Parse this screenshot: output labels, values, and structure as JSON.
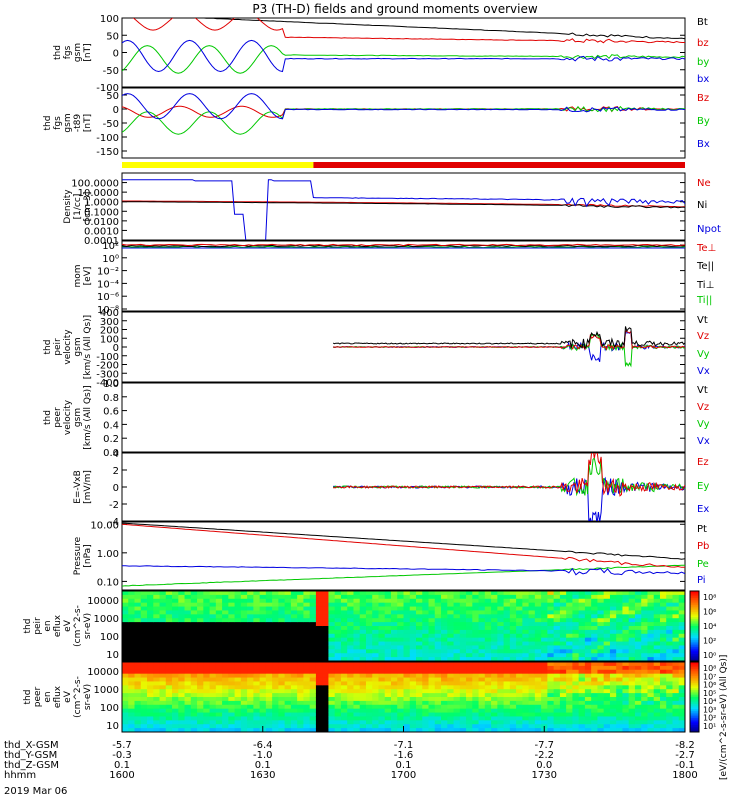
{
  "title": "P3 (TH-D) fields and ground moments overview",
  "date_label": "2019 Mar 06",
  "colors": {
    "black": "#000000",
    "red": "#e00000",
    "green": "#00c800",
    "blue": "#0000e0",
    "yellow": "#ffff00"
  },
  "chart_data": [
    {
      "type": "line",
      "id": "fgs",
      "ylabel_lines": [
        "thd",
        "fgs",
        "gsm",
        "[nT]"
      ],
      "ylim": [
        -100,
        100
      ],
      "yticks": [
        100,
        50,
        0,
        -50,
        -100
      ],
      "series": [
        {
          "name": "Bt",
          "color": "#000000"
        },
        {
          "name": "bz",
          "color": "#e00000"
        },
        {
          "name": "by",
          "color": "#00c800"
        },
        {
          "name": "bx",
          "color": "#0000e0"
        }
      ]
    },
    {
      "type": "line",
      "id": "fgs_t89",
      "ylabel_lines": [
        "thd",
        "fgs",
        "gsm",
        "-t89",
        "[nT]"
      ],
      "ylim": [
        -175,
        75
      ],
      "yticks": [
        50,
        0,
        -50,
        -100,
        -150
      ],
      "series": [
        {
          "name": "Bz",
          "color": "#e00000"
        },
        {
          "name": "By",
          "color": "#00c800"
        },
        {
          "name": "Bx",
          "color": "#0000e0"
        }
      ]
    },
    {
      "type": "line",
      "id": "density",
      "ylabel_lines": [
        "Density",
        "[1/cc]",
        "[cm-3]"
      ],
      "ylog": true,
      "ylim": [
        0.0001,
        1000
      ],
      "yticks": [
        "100.0000",
        "10.0000",
        "1.0000",
        "0.1000",
        "0.0100",
        "0.0010",
        "0.0001"
      ],
      "series": [
        {
          "name": "Ne",
          "color": "#e00000"
        },
        {
          "name": "Ni",
          "color": "#000000"
        },
        {
          "name": "Npot",
          "color": "#0000e0"
        }
      ]
    },
    {
      "type": "line",
      "id": "temperature",
      "ylabel_lines": [
        "mom",
        "[eV]"
      ],
      "ylog": true,
      "yticks": [
        "10²",
        "10⁰",
        "10⁻²",
        "10⁻⁴",
        "10⁻⁶",
        "10⁻⁸"
      ],
      "series": [
        {
          "name": "Te⊥",
          "color": "#e00000"
        },
        {
          "name": "Te||",
          "color": "#000000"
        },
        {
          "name": "Ti⊥",
          "color": "#000000"
        },
        {
          "name": "Ti||",
          "color": "#00c800"
        }
      ]
    },
    {
      "type": "line",
      "id": "peir_velocity",
      "ylabel_lines": [
        "thd",
        "peir",
        "velocity",
        "gsm",
        "[km/s (All Qs)]"
      ],
      "ylim": [
        -400,
        400
      ],
      "yticks": [
        400,
        300,
        200,
        100,
        0,
        -100,
        -200,
        -300,
        -400
      ],
      "series": [
        {
          "name": "Vt",
          "color": "#000000"
        },
        {
          "name": "Vz",
          "color": "#e00000"
        },
        {
          "name": "Vy",
          "color": "#00c800"
        },
        {
          "name": "Vx",
          "color": "#0000e0"
        }
      ]
    },
    {
      "type": "line",
      "id": "peer_velocity",
      "ylabel_lines": [
        "thd",
        "peer",
        "velocity",
        "gsm",
        "[km/s (All Qs)]"
      ],
      "ylim": [
        0,
        1.0
      ],
      "yticks": [
        "1.0",
        "0.8",
        "0.6",
        "0.4",
        "0.2",
        "0.0"
      ],
      "series": [
        {
          "name": "Vt",
          "color": "#000000"
        },
        {
          "name": "Vz",
          "color": "#e00000"
        },
        {
          "name": "Vy",
          "color": "#00c800"
        },
        {
          "name": "Vx",
          "color": "#0000e0"
        }
      ]
    },
    {
      "type": "line",
      "id": "efield",
      "ylabel_lines": [
        "E=-VxB",
        "[mV/m]"
      ],
      "ylim": [
        -4,
        4
      ],
      "yticks": [
        4,
        2,
        0,
        -2,
        -4
      ],
      "series": [
        {
          "name": "Ez",
          "color": "#e00000"
        },
        {
          "name": "Ey",
          "color": "#00c800"
        },
        {
          "name": "Ex",
          "color": "#0000e0"
        }
      ]
    },
    {
      "type": "line",
      "id": "pressure",
      "ylabel_lines": [
        "Pressure",
        "[nPa]"
      ],
      "ylog": true,
      "ylim": [
        0.05,
        12
      ],
      "yticks": [
        "10.00",
        "1.00",
        "0.10"
      ],
      "series": [
        {
          "name": "Pt",
          "color": "#000000"
        },
        {
          "name": "Pb",
          "color": "#e00000"
        },
        {
          "name": "Pe",
          "color": "#00c800"
        },
        {
          "name": "Pi",
          "color": "#0000e0"
        }
      ]
    },
    {
      "type": "heatmap",
      "id": "peir_eflux",
      "ylabel_lines": [
        "thd",
        "peir",
        "en",
        "eflux",
        "eV",
        "(cm^2-s-",
        "sr-eV)"
      ],
      "ylog": true,
      "yticks": [
        "10000",
        "1000",
        "100",
        "10"
      ]
    },
    {
      "type": "heatmap",
      "id": "peer_eflux",
      "ylabel_lines": [
        "thd",
        "peer",
        "en",
        "eflux",
        "eV",
        "(cm^2-s-",
        "sr-eV)"
      ],
      "ylog": true,
      "yticks": [
        "10000",
        "1000",
        "100",
        "10"
      ]
    }
  ],
  "colorbar": {
    "label": "[eV/(cm^2-s-sr-eV) (All Qs)]",
    "top_ticks": [
      "10⁸",
      "10⁶",
      "10⁴",
      "10²",
      "10⁰"
    ],
    "bottom_ticks": [
      "10⁸",
      "10⁷",
      "10⁶",
      "10⁵",
      "10⁴",
      "10³",
      "10²",
      "10¹"
    ]
  },
  "x_axis": {
    "row_labels": [
      "thd_X-GSM",
      "thd_Y-GSM",
      "thd_Z-GSM",
      "hhmm"
    ],
    "ticks": [
      {
        "hhmm": "1600",
        "X": "-5.7",
        "Y": "-0.3",
        "Z": "0.1"
      },
      {
        "hhmm": "1630",
        "X": "-6.4",
        "Y": "-1.0",
        "Z": "0.1"
      },
      {
        "hhmm": "1700",
        "X": "-7.1",
        "Y": "-1.6",
        "Z": "0.1"
      },
      {
        "hhmm": "1730",
        "X": "-7.7",
        "Y": "-2.2",
        "Z": "0.0"
      },
      {
        "hhmm": "1800",
        "X": "-8.2",
        "Y": "-2.7",
        "Z": "-0.1"
      }
    ]
  }
}
